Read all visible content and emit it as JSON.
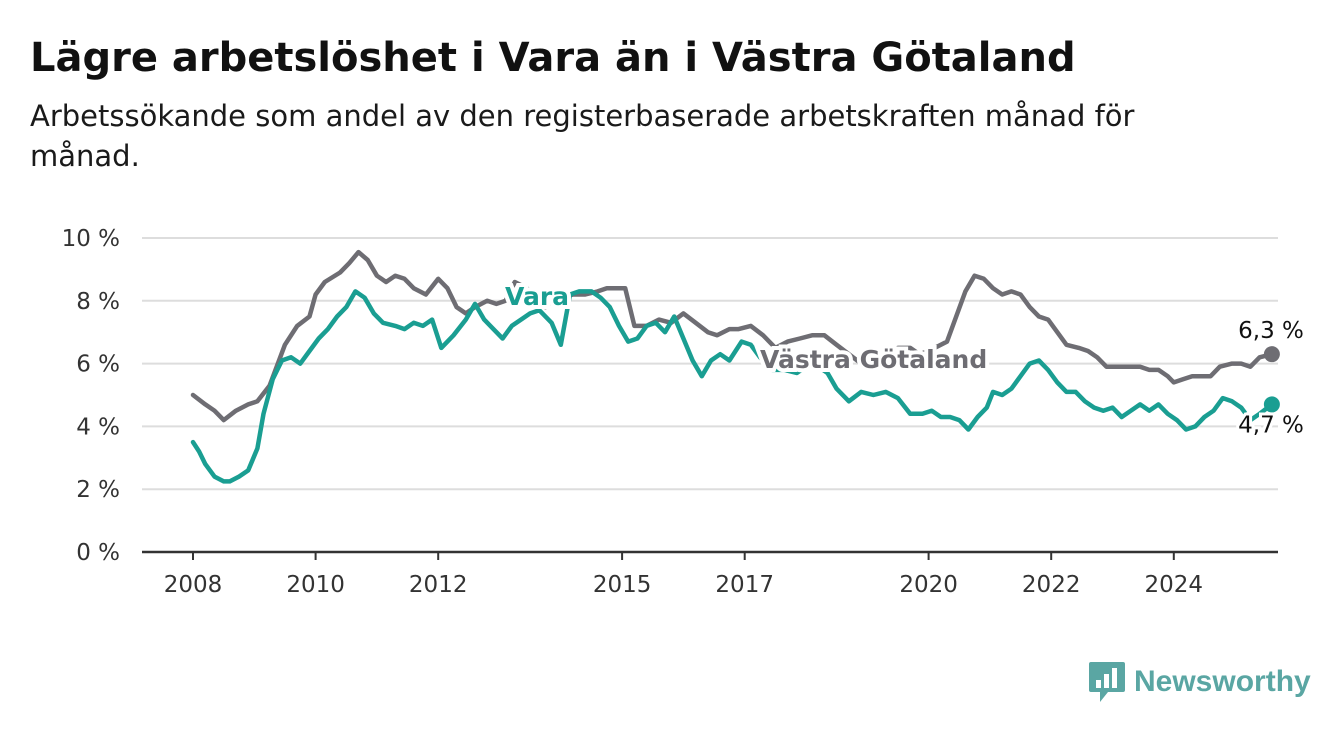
{
  "title": "Lägre arbetslöshet i Vara än i Västra Götaland",
  "subtitle": "Arbetssökande som andel av den registerbaserade arbetskraften månad för månad.",
  "logo_text": "Newsworthy",
  "colors": {
    "vara": "#1a9e92",
    "vg": "#6e6d73",
    "grid": "#dddddd",
    "axis": "#333333"
  },
  "chart_data": {
    "type": "line",
    "title": "Lägre arbetslöshet i Vara än i Västra Götaland",
    "xlabel": "",
    "ylabel": "",
    "xlim": [
      2008,
      2025.75
    ],
    "ylim": [
      0,
      10
    ],
    "grid": true,
    "x_ticks": [
      2008,
      2010,
      2012,
      2015,
      2017,
      2020,
      2022,
      2024
    ],
    "y_ticks": [
      0,
      2,
      4,
      6,
      8,
      10
    ],
    "y_tick_labels": [
      "0 %",
      "2 %",
      "4 %",
      "6 %",
      "8 %",
      "10 %"
    ],
    "end_labels": {
      "vg": "6,3 %",
      "vara": "4,7 %"
    },
    "series": [
      {
        "key": "vg",
        "name": "Västra Götaland",
        "points": [
          [
            2008,
            5.0
          ],
          [
            2008.2,
            4.7
          ],
          [
            2008.35,
            4.5
          ],
          [
            2008.5,
            4.2
          ],
          [
            2008.7,
            4.5
          ],
          [
            2008.9,
            4.7
          ],
          [
            2009.05,
            4.8
          ],
          [
            2009.25,
            5.3
          ],
          [
            2009.5,
            6.6
          ],
          [
            2009.7,
            7.2
          ],
          [
            2009.9,
            7.5
          ],
          [
            2010.0,
            8.2
          ],
          [
            2010.15,
            8.6
          ],
          [
            2010.4,
            8.9
          ],
          [
            2010.55,
            9.2
          ],
          [
            2010.7,
            9.55
          ],
          [
            2010.85,
            9.3
          ],
          [
            2011.0,
            8.8
          ],
          [
            2011.15,
            8.6
          ],
          [
            2011.3,
            8.8
          ],
          [
            2011.45,
            8.7
          ],
          [
            2011.6,
            8.4
          ],
          [
            2011.8,
            8.2
          ],
          [
            2012.0,
            8.7
          ],
          [
            2012.15,
            8.4
          ],
          [
            2012.3,
            7.8
          ],
          [
            2012.45,
            7.6
          ],
          [
            2012.6,
            7.8
          ],
          [
            2012.8,
            8.0
          ],
          [
            2012.95,
            7.9
          ],
          [
            2013.1,
            8.0
          ],
          [
            2013.25,
            8.6
          ],
          [
            2013.45,
            8.4
          ],
          [
            2013.6,
            8.0
          ],
          [
            2013.75,
            7.8
          ],
          [
            2013.9,
            8.1
          ],
          [
            2014.0,
            8.1
          ],
          [
            2014.2,
            8.2
          ],
          [
            2014.4,
            8.2
          ],
          [
            2014.6,
            8.3
          ],
          [
            2014.75,
            8.4
          ],
          [
            2014.95,
            8.4
          ],
          [
            2015.05,
            8.4
          ],
          [
            2015.2,
            7.2
          ],
          [
            2015.4,
            7.2
          ],
          [
            2015.6,
            7.4
          ],
          [
            2015.8,
            7.3
          ],
          [
            2016.0,
            7.6
          ],
          [
            2016.2,
            7.3
          ],
          [
            2016.4,
            7.0
          ],
          [
            2016.55,
            6.9
          ],
          [
            2016.75,
            7.1
          ],
          [
            2016.9,
            7.1
          ],
          [
            2017.1,
            7.2
          ],
          [
            2017.3,
            6.9
          ],
          [
            2017.5,
            6.5
          ],
          [
            2017.7,
            6.7
          ],
          [
            2017.9,
            6.8
          ],
          [
            2018.1,
            6.9
          ],
          [
            2018.3,
            6.9
          ],
          [
            2018.5,
            6.6
          ],
          [
            2018.7,
            6.3
          ],
          [
            2018.9,
            6.0
          ],
          [
            2019.1,
            6.1
          ],
          [
            2019.3,
            6.3
          ],
          [
            2019.5,
            6.5
          ],
          [
            2019.7,
            6.5
          ],
          [
            2019.85,
            6.3
          ],
          [
            2020.0,
            6.4
          ],
          [
            2020.2,
            6.6
          ],
          [
            2020.3,
            6.7
          ],
          [
            2020.45,
            7.5
          ],
          [
            2020.6,
            8.3
          ],
          [
            2020.75,
            8.8
          ],
          [
            2020.9,
            8.7
          ],
          [
            2021.05,
            8.4
          ],
          [
            2021.2,
            8.2
          ],
          [
            2021.35,
            8.3
          ],
          [
            2021.5,
            8.2
          ],
          [
            2021.65,
            7.8
          ],
          [
            2021.8,
            7.5
          ],
          [
            2021.95,
            7.4
          ],
          [
            2022.1,
            7.0
          ],
          [
            2022.25,
            6.6
          ],
          [
            2022.45,
            6.5
          ],
          [
            2022.6,
            6.4
          ],
          [
            2022.75,
            6.2
          ],
          [
            2022.9,
            5.9
          ],
          [
            2023.1,
            5.9
          ],
          [
            2023.25,
            5.9
          ],
          [
            2023.45,
            5.9
          ],
          [
            2023.6,
            5.8
          ],
          [
            2023.75,
            5.8
          ],
          [
            2023.9,
            5.6
          ],
          [
            2024.0,
            5.4
          ],
          [
            2024.15,
            5.5
          ],
          [
            2024.3,
            5.6
          ],
          [
            2024.45,
            5.6
          ],
          [
            2024.6,
            5.6
          ],
          [
            2024.75,
            5.9
          ],
          [
            2024.95,
            6.0
          ],
          [
            2025.1,
            6.0
          ],
          [
            2025.25,
            5.9
          ],
          [
            2025.4,
            6.2
          ],
          [
            2025.6,
            6.3
          ]
        ]
      },
      {
        "key": "vara",
        "name": "Vara",
        "points": [
          [
            2008,
            3.5
          ],
          [
            2008.1,
            3.2
          ],
          [
            2008.2,
            2.8
          ],
          [
            2008.35,
            2.4
          ],
          [
            2008.5,
            2.25
          ],
          [
            2008.6,
            2.25
          ],
          [
            2008.75,
            2.4
          ],
          [
            2008.9,
            2.6
          ],
          [
            2009.05,
            3.3
          ],
          [
            2009.15,
            4.4
          ],
          [
            2009.3,
            5.5
          ],
          [
            2009.45,
            6.1
          ],
          [
            2009.6,
            6.2
          ],
          [
            2009.75,
            6.0
          ],
          [
            2009.9,
            6.4
          ],
          [
            2010.05,
            6.8
          ],
          [
            2010.2,
            7.1
          ],
          [
            2010.35,
            7.5
          ],
          [
            2010.5,
            7.8
          ],
          [
            2010.65,
            8.3
          ],
          [
            2010.8,
            8.1
          ],
          [
            2010.95,
            7.6
          ],
          [
            2011.1,
            7.3
          ],
          [
            2011.3,
            7.2
          ],
          [
            2011.45,
            7.1
          ],
          [
            2011.6,
            7.3
          ],
          [
            2011.75,
            7.2
          ],
          [
            2011.9,
            7.4
          ],
          [
            2012.05,
            6.5
          ],
          [
            2012.25,
            6.9
          ],
          [
            2012.45,
            7.4
          ],
          [
            2012.6,
            7.9
          ],
          [
            2012.75,
            7.4
          ],
          [
            2012.9,
            7.1
          ],
          [
            2013.05,
            6.8
          ],
          [
            2013.2,
            7.2
          ],
          [
            2013.35,
            7.4
          ],
          [
            2013.5,
            7.6
          ],
          [
            2013.65,
            7.7
          ],
          [
            2013.85,
            7.3
          ],
          [
            2014.0,
            6.6
          ],
          [
            2014.15,
            8.2
          ],
          [
            2014.3,
            8.3
          ],
          [
            2014.5,
            8.3
          ],
          [
            2014.65,
            8.1
          ],
          [
            2014.8,
            7.8
          ],
          [
            2014.95,
            7.2
          ],
          [
            2015.1,
            6.7
          ],
          [
            2015.25,
            6.8
          ],
          [
            2015.4,
            7.2
          ],
          [
            2015.55,
            7.3
          ],
          [
            2015.7,
            7.0
          ],
          [
            2015.85,
            7.5
          ],
          [
            2016.0,
            6.8
          ],
          [
            2016.15,
            6.1
          ],
          [
            2016.3,
            5.6
          ],
          [
            2016.45,
            6.1
          ],
          [
            2016.6,
            6.3
          ],
          [
            2016.75,
            6.1
          ],
          [
            2016.95,
            6.7
          ],
          [
            2017.1,
            6.6
          ],
          [
            2017.25,
            6.2
          ],
          [
            2017.45,
            5.8
          ],
          [
            2017.65,
            5.8
          ],
          [
            2017.85,
            5.7
          ],
          [
            2018.0,
            5.9
          ],
          [
            2018.2,
            5.9
          ],
          [
            2018.35,
            5.7
          ],
          [
            2018.5,
            5.2
          ],
          [
            2018.7,
            4.8
          ],
          [
            2018.9,
            5.1
          ],
          [
            2019.1,
            5.0
          ],
          [
            2019.3,
            5.1
          ],
          [
            2019.5,
            4.9
          ],
          [
            2019.7,
            4.4
          ],
          [
            2019.9,
            4.4
          ],
          [
            2020.05,
            4.5
          ],
          [
            2020.2,
            4.3
          ],
          [
            2020.35,
            4.3
          ],
          [
            2020.5,
            4.2
          ],
          [
            2020.65,
            3.9
          ],
          [
            2020.8,
            4.3
          ],
          [
            2020.95,
            4.6
          ],
          [
            2021.05,
            5.1
          ],
          [
            2021.2,
            5.0
          ],
          [
            2021.35,
            5.2
          ],
          [
            2021.5,
            5.6
          ],
          [
            2021.65,
            6.0
          ],
          [
            2021.8,
            6.1
          ],
          [
            2021.95,
            5.8
          ],
          [
            2022.1,
            5.4
          ],
          [
            2022.25,
            5.1
          ],
          [
            2022.4,
            5.1
          ],
          [
            2022.55,
            4.8
          ],
          [
            2022.7,
            4.6
          ],
          [
            2022.85,
            4.5
          ],
          [
            2023.0,
            4.6
          ],
          [
            2023.15,
            4.3
          ],
          [
            2023.3,
            4.5
          ],
          [
            2023.45,
            4.7
          ],
          [
            2023.6,
            4.5
          ],
          [
            2023.75,
            4.7
          ],
          [
            2023.9,
            4.4
          ],
          [
            2024.05,
            4.2
          ],
          [
            2024.2,
            3.9
          ],
          [
            2024.35,
            4.0
          ],
          [
            2024.5,
            4.3
          ],
          [
            2024.65,
            4.5
          ],
          [
            2024.8,
            4.9
          ],
          [
            2024.95,
            4.8
          ],
          [
            2025.1,
            4.6
          ],
          [
            2025.25,
            4.2
          ],
          [
            2025.4,
            4.4
          ],
          [
            2025.6,
            4.7
          ]
        ]
      }
    ]
  }
}
